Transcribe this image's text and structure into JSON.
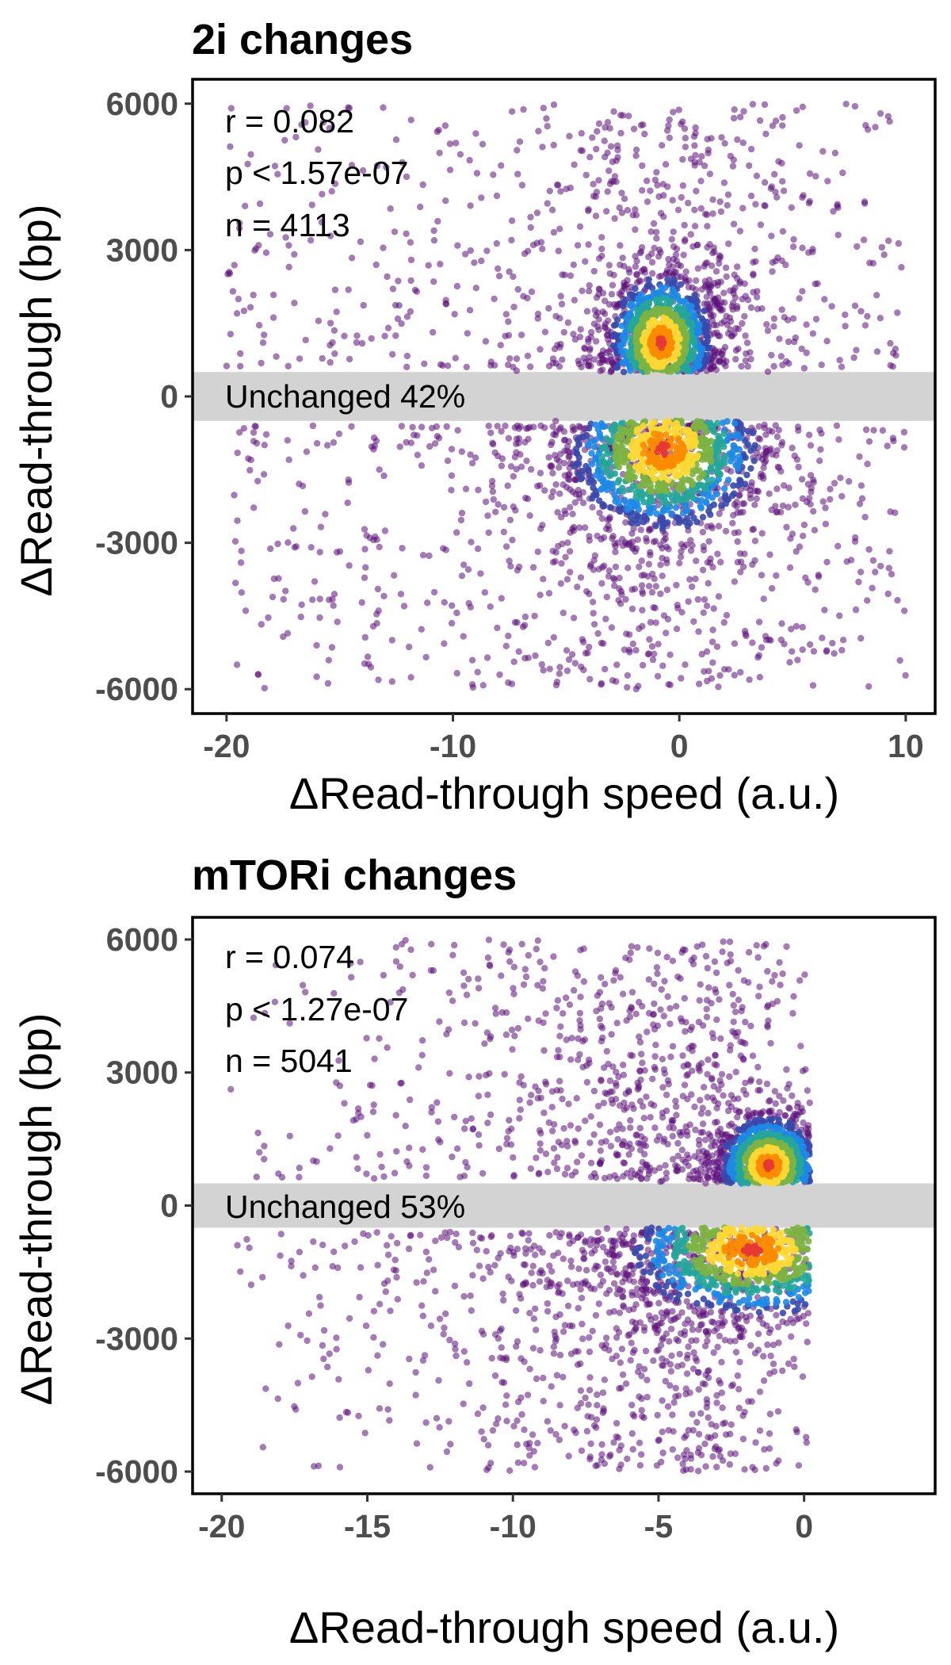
{
  "chart_data": [
    {
      "type": "scatter",
      "title": "2i changes",
      "xlabel": "ΔRead-through speed (a.u.)",
      "ylabel": "ΔRead-through (bp)",
      "xlim": [
        -21.5,
        11.3
      ],
      "ylim": [
        -6500,
        6500
      ],
      "xticks": [
        -20,
        -10,
        0,
        10
      ],
      "xtick_labels": [
        "-20",
        "-10",
        "0",
        "10"
      ],
      "yticks": [
        -6000,
        -3000,
        0,
        3000,
        6000
      ],
      "ytick_labels": [
        "-6000",
        "-3000",
        "0",
        "3000",
        "6000"
      ],
      "stats": {
        "r": "r = 0.082",
        "p": "p < 1.57e-07",
        "n": "n = 4113"
      },
      "unchanged_band": {
        "range": [
          -500,
          500
        ],
        "label": "Unchanged 42%"
      },
      "grid": false,
      "color_encoding": "point density (purple low → blue → green → yellow → red high)",
      "density_colors": [
        "#5b0f7a",
        "#3949ab",
        "#1e88e5",
        "#26a69a",
        "#7cb342",
        "#fdd835",
        "#fb8c00",
        "#e53935"
      ],
      "clusters": [
        {
          "x_center": -0.8,
          "y_center": 1100,
          "x_spread": 0.8,
          "y_spread": 500
        },
        {
          "x_center": -0.7,
          "y_center": -1100,
          "x_spread": 1.5,
          "y_spread": 600
        }
      ]
    },
    {
      "type": "scatter",
      "title": "mTORi changes",
      "xlabel": "ΔRead-through speed (a.u.)",
      "ylabel": "ΔRead-through (bp)",
      "xlim": [
        -21,
        4.5
      ],
      "ylim": [
        -6500,
        6500
      ],
      "xticks": [
        -20,
        -15,
        -10,
        -5,
        0
      ],
      "xtick_labels": [
        "-20",
        "-15",
        "-10",
        "-5",
        "0"
      ],
      "yticks": [
        -6000,
        -3000,
        0,
        3000,
        6000
      ],
      "ytick_labels": [
        "-6000",
        "-3000",
        "0",
        "3000",
        "6000"
      ],
      "stats": {
        "r": "r = 0.074",
        "p": "p < 1.27e-07",
        "n": "n = 5041"
      },
      "unchanged_band": {
        "range": [
          -500,
          500
        ],
        "label": "Unchanged 53%"
      },
      "grid": false,
      "color_encoding": "point density (purple low → blue → green → yellow → red high)",
      "density_colors": [
        "#5b0f7a",
        "#3949ab",
        "#1e88e5",
        "#26a69a",
        "#7cb342",
        "#fdd835",
        "#fb8c00",
        "#e53935"
      ],
      "clusters": [
        {
          "x_center": -1.2,
          "y_center": 900,
          "x_spread": 0.6,
          "y_spread": 400
        },
        {
          "x_center": -1.8,
          "y_center": -1000,
          "x_spread": 1.5,
          "y_spread": 550
        }
      ]
    }
  ]
}
